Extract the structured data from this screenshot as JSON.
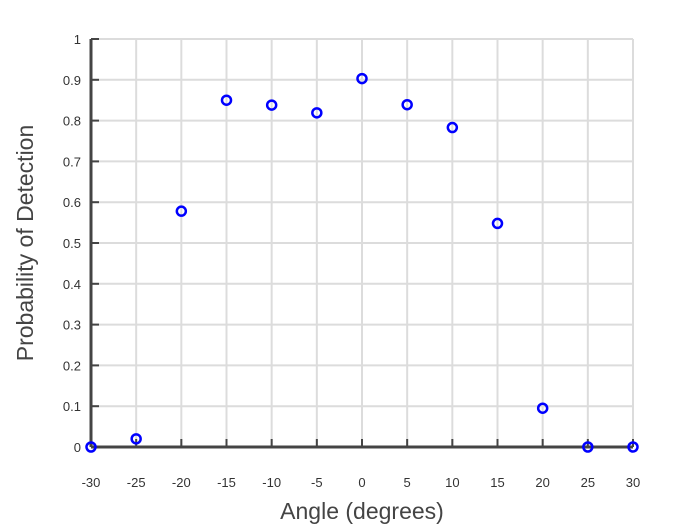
{
  "chart_data": {
    "type": "scatter",
    "title": "",
    "xlabel": "Angle (degrees)",
    "ylabel": "Probability of Detection",
    "xlim": [
      -30,
      30
    ],
    "ylim": [
      0,
      1
    ],
    "xticks": [
      "-30",
      "-25",
      "-20",
      "-15",
      "-10",
      "-5",
      "0",
      "5",
      "10",
      "15",
      "20",
      "25",
      "30"
    ],
    "yticks": [
      "0",
      "0.1",
      "0.2",
      "0.3",
      "0.4",
      "0.5",
      "0.6",
      "0.7",
      "0.8",
      "0.9",
      "1"
    ],
    "grid": true,
    "marker": "open-circle",
    "series": [
      {
        "color": "#0000ff",
        "x": [
          -30,
          -25,
          -20,
          -15,
          -10,
          -5,
          0,
          5,
          10,
          15,
          20,
          25,
          30
        ],
        "y": [
          0,
          0.02,
          0.578,
          0.85,
          0.838,
          0.819,
          0.903,
          0.839,
          0.783,
          0.548,
          0.095,
          0,
          0
        ]
      }
    ]
  }
}
